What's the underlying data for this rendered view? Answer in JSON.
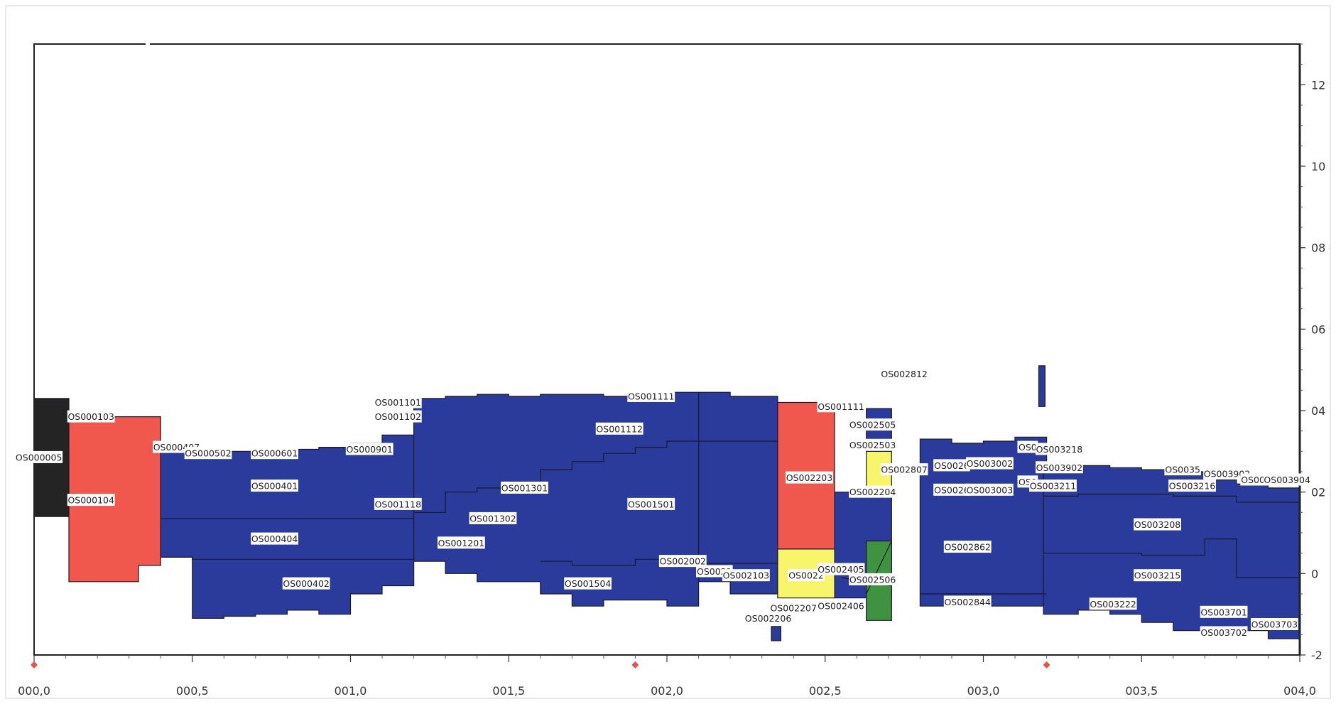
{
  "chart_data": {
    "type": "area",
    "x_ticks": [
      "000,0",
      "000,5",
      "001,0",
      "001,5",
      "002,0",
      "002,5",
      "003,0",
      "003,5",
      "004,0"
    ],
    "y_ticks": [
      "-2",
      "0",
      "02",
      "04",
      "06",
      "08",
      "10",
      "12"
    ],
    "xlim": [
      0.0,
      4.0
    ],
    "ylim": [
      -2.0,
      13.0
    ],
    "markers_x": [
      0.0,
      1.9,
      3.2
    ],
    "colors": {
      "dark": "#242424",
      "red": "#f0584e",
      "blue": "#2a3b9c",
      "yellow": "#f7f56a",
      "green": "#3f9240",
      "line": "#1a1a2a"
    },
    "segments": [
      {
        "color": "dark",
        "x": [
          0.0,
          0.11
        ],
        "top": [
          4.3,
          4.3
        ],
        "bottom": [
          1.4,
          1.4
        ]
      },
      {
        "color": "red",
        "x": [
          0.11,
          0.21,
          0.21,
          0.33,
          0.33,
          0.4
        ],
        "top": [
          3.8,
          3.8,
          3.85,
          3.85,
          3.85,
          3.85
        ],
        "bottom": [
          -0.2,
          -0.2,
          -0.2,
          -0.2,
          0.2,
          0.2
        ]
      },
      {
        "color": "blue",
        "x": [
          0.4,
          0.5,
          0.5,
          0.6,
          0.6,
          0.7,
          0.7,
          0.8,
          0.8,
          0.9,
          0.9,
          1.0,
          1.0,
          1.1,
          1.1,
          1.2
        ],
        "top": [
          3.0,
          3.0,
          2.95,
          2.95,
          3.0,
          3.0,
          2.95,
          2.95,
          3.05,
          3.05,
          3.1,
          3.1,
          3.2,
          3.2,
          3.4,
          3.4
        ],
        "bottom": [
          0.4,
          0.4,
          -1.1,
          -1.1,
          -1.05,
          -1.05,
          -1.0,
          -1.0,
          -0.9,
          -0.9,
          -1.0,
          -1.0,
          -0.5,
          -0.5,
          -0.3,
          -0.3
        ]
      },
      {
        "color": "blue",
        "x": [
          1.2,
          1.3,
          1.3,
          1.4,
          1.4,
          1.5,
          1.5,
          1.6,
          1.6,
          1.7,
          1.7,
          1.8,
          1.8,
          1.9,
          1.9,
          2.0,
          2.0,
          2.1
        ],
        "top": [
          4.3,
          4.3,
          4.35,
          4.35,
          4.4,
          4.4,
          4.35,
          4.35,
          4.4,
          4.4,
          4.4,
          4.4,
          4.35,
          4.35,
          4.4,
          4.4,
          4.45,
          4.45
        ],
        "bottom": [
          0.3,
          0.3,
          0.0,
          0.0,
          -0.2,
          -0.2,
          -0.2,
          -0.2,
          -0.5,
          -0.5,
          -0.8,
          -0.8,
          -0.65,
          -0.65,
          -0.65,
          -0.65,
          -0.8,
          -0.8
        ]
      },
      {
        "color": "blue",
        "x": [
          2.1,
          2.2,
          2.2,
          2.35
        ],
        "top": [
          4.45,
          4.45,
          4.35,
          4.35
        ],
        "bottom": [
          -0.2,
          -0.2,
          -0.5,
          -0.5
        ]
      },
      {
        "color": "red",
        "x": [
          2.35,
          2.53
        ],
        "top": [
          4.2,
          4.2
        ],
        "bottom": [
          0.6,
          0.6
        ]
      },
      {
        "color": "yellow",
        "x": [
          2.35,
          2.53
        ],
        "top": [
          0.6,
          0.6
        ],
        "bottom": [
          -0.6,
          -0.6
        ]
      },
      {
        "color": "blue",
        "x": [
          2.53,
          2.71
        ],
        "top": [
          2.0,
          2.0
        ],
        "bottom": [
          -0.6,
          -0.6
        ]
      },
      {
        "color": "yellow",
        "x": [
          2.63,
          2.71
        ],
        "top": [
          3.0,
          3.0
        ],
        "bottom": [
          2.0,
          2.0
        ]
      },
      {
        "color": "green",
        "x": [
          2.63,
          2.71
        ],
        "top": [
          0.8,
          0.8
        ],
        "bottom": [
          -1.15,
          -1.15
        ]
      },
      {
        "color": "blue",
        "x": [
          2.63,
          2.71
        ],
        "top": [
          4.05,
          4.05
        ],
        "bottom": [
          3.0,
          3.0
        ]
      },
      {
        "color": "blue",
        "x": [
          2.33,
          2.36
        ],
        "top": [
          -1.3,
          -1.3
        ],
        "bottom": [
          -1.65,
          -1.65
        ]
      },
      {
        "color": "blue",
        "x": [
          2.8,
          2.9,
          2.9,
          3.0,
          3.0,
          3.1,
          3.1,
          3.2
        ],
        "top": [
          3.3,
          3.3,
          3.2,
          3.2,
          3.25,
          3.25,
          3.35,
          3.35
        ],
        "bottom": [
          -0.8,
          -0.8,
          -0.8,
          -0.8,
          -0.8,
          -0.8,
          -0.8,
          -0.8
        ]
      },
      {
        "color": "blue",
        "x": [
          3.175,
          3.195
        ],
        "top": [
          5.1,
          5.1
        ],
        "bottom": [
          4.1,
          4.1
        ]
      },
      {
        "color": "blue",
        "x": [
          3.19,
          3.3,
          3.3,
          3.4,
          3.4,
          3.5,
          3.5,
          3.6,
          3.6,
          3.7,
          3.7,
          3.8,
          3.8,
          3.9,
          3.9,
          4.0
        ],
        "top": [
          2.6,
          2.6,
          2.65,
          2.65,
          2.6,
          2.6,
          2.55,
          2.55,
          2.5,
          2.5,
          2.3,
          2.3,
          2.2,
          2.2,
          2.1,
          2.1
        ],
        "bottom": [
          -1.0,
          -1.0,
          -0.9,
          -0.9,
          -1.0,
          -1.0,
          -1.2,
          -1.2,
          -1.4,
          -1.4,
          -1.5,
          -1.5,
          -1.4,
          -1.4,
          -1.6,
          -1.6
        ]
      }
    ],
    "labels": [
      {
        "text": "OS000005",
        "x": 0.015,
        "y": 2.85
      },
      {
        "text": "OS000103",
        "x": 0.18,
        "y": 3.85
      },
      {
        "text": "OS000104",
        "x": 0.18,
        "y": 1.8
      },
      {
        "text": "OS000407",
        "x": 0.45,
        "y": 3.1
      },
      {
        "text": "OS000502",
        "x": 0.55,
        "y": 2.95
      },
      {
        "text": "OS000601",
        "x": 0.76,
        "y": 2.95
      },
      {
        "text": "OS000901",
        "x": 1.06,
        "y": 3.05
      },
      {
        "text": "OS000401",
        "x": 0.76,
        "y": 2.15
      },
      {
        "text": "OS000404",
        "x": 0.76,
        "y": 0.85
      },
      {
        "text": "OS000402",
        "x": 0.86,
        "y": -0.25
      },
      {
        "text": "OS001101",
        "x": 1.15,
        "y": 4.2
      },
      {
        "text": "OS001102",
        "x": 1.15,
        "y": 3.85
      },
      {
        "text": "OS001118",
        "x": 1.15,
        "y": 1.7
      },
      {
        "text": "OS001201",
        "x": 1.35,
        "y": 0.75
      },
      {
        "text": "OS001302",
        "x": 1.45,
        "y": 1.35
      },
      {
        "text": "OS001301",
        "x": 1.55,
        "y": 2.1
      },
      {
        "text": "OS001111",
        "x": 1.95,
        "y": 4.35
      },
      {
        "text": "OS001112",
        "x": 1.85,
        "y": 3.55
      },
      {
        "text": "OS001501",
        "x": 1.95,
        "y": 1.7
      },
      {
        "text": "OS001504",
        "x": 1.75,
        "y": -0.25
      },
      {
        "text": "OS002002",
        "x": 2.05,
        "y": 0.3
      },
      {
        "text": "OS0021",
        "x": 2.15,
        "y": 0.05
      },
      {
        "text": "OS002103",
        "x": 2.25,
        "y": -0.05
      },
      {
        "text": "OS002203",
        "x": 2.45,
        "y": 2.35
      },
      {
        "text": "OS0022",
        "x": 2.44,
        "y": -0.05
      },
      {
        "text": "OS002207",
        "x": 2.4,
        "y": -0.85
      },
      {
        "text": "OS002206",
        "x": 2.32,
        "y": -1.1
      },
      {
        "text": "OS001111",
        "x": 2.55,
        "y": 4.1
      },
      {
        "text": "OS002505",
        "x": 2.65,
        "y": 3.65
      },
      {
        "text": "OS002503",
        "x": 2.65,
        "y": 3.15
      },
      {
        "text": "OS002204",
        "x": 2.65,
        "y": 2.0
      },
      {
        "text": "OS002405",
        "x": 2.55,
        "y": 0.1
      },
      {
        "text": "OS002506",
        "x": 2.65,
        "y": -0.15
      },
      {
        "text": "OS002406",
        "x": 2.55,
        "y": -0.8
      },
      {
        "text": "OS002812",
        "x": 2.75,
        "y": 4.9
      },
      {
        "text": "OS002807",
        "x": 2.75,
        "y": 2.55
      },
      {
        "text": "OS0026",
        "x": 2.9,
        "y": 2.65
      },
      {
        "text": "OS003002",
        "x": 3.02,
        "y": 2.7
      },
      {
        "text": "OS0026",
        "x": 2.9,
        "y": 2.05
      },
      {
        "text": "OS003003",
        "x": 3.02,
        "y": 2.05
      },
      {
        "text": "OS002862",
        "x": 2.95,
        "y": 0.65
      },
      {
        "text": "OS002844",
        "x": 2.95,
        "y": -0.7
      },
      {
        "text": "OS0",
        "x": 3.14,
        "y": 3.1
      },
      {
        "text": "OS003218",
        "x": 3.24,
        "y": 3.05
      },
      {
        "text": "OS003902",
        "x": 3.24,
        "y": 2.6
      },
      {
        "text": "OS0",
        "x": 3.14,
        "y": 2.25
      },
      {
        "text": "OS003211",
        "x": 3.22,
        "y": 2.15
      },
      {
        "text": "OS0035",
        "x": 3.63,
        "y": 2.55
      },
      {
        "text": "OS003902",
        "x": 3.77,
        "y": 2.45
      },
      {
        "text": "OS0036",
        "x": 3.87,
        "y": 2.3
      },
      {
        "text": "OS003904",
        "x": 3.96,
        "y": 2.3
      },
      {
        "text": "OS003216",
        "x": 3.66,
        "y": 2.15
      },
      {
        "text": "OS003208",
        "x": 3.55,
        "y": 1.2
      },
      {
        "text": "OS003215",
        "x": 3.55,
        "y": -0.05
      },
      {
        "text": "OS003222",
        "x": 3.41,
        "y": -0.75
      },
      {
        "text": "OS003701",
        "x": 3.76,
        "y": -0.95
      },
      {
        "text": "OS003702",
        "x": 3.76,
        "y": -1.45
      },
      {
        "text": "OS003703",
        "x": 3.92,
        "y": -1.25
      }
    ]
  }
}
